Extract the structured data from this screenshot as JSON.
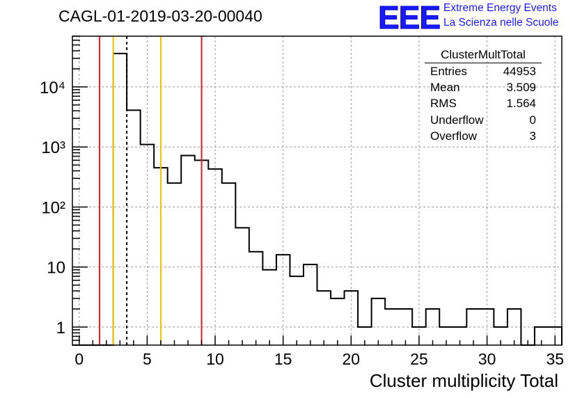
{
  "chart_data": {
    "type": "bar",
    "title": "CAGL-01-2019-03-20-00040",
    "xlabel": "Cluster multiplicity Total",
    "ylabel": "",
    "xlim": [
      -0.5,
      35.5
    ],
    "ylim": [
      0.5,
      70000
    ],
    "yscale": "log",
    "grid": true,
    "bin_edges_start": 0,
    "bin_width": 1,
    "values": [
      0,
      0,
      0,
      36000,
      4100,
      1100,
      450,
      250,
      720,
      600,
      430,
      250,
      45,
      18,
      9,
      16,
      7,
      11,
      4,
      3,
      4,
      1,
      3,
      2,
      2,
      1,
      2,
      1,
      1,
      2,
      2,
      1,
      2,
      0,
      1,
      1
    ],
    "x_ticks": [
      "0",
      "5",
      "10",
      "15",
      "20",
      "25",
      "30",
      "35"
    ],
    "y_ticks": [
      "1",
      "10",
      "10²",
      "10³",
      "10⁴"
    ],
    "vertical_lines": [
      {
        "x": 1.5,
        "color": "#e8191c",
        "style": "solid"
      },
      {
        "x": 2.5,
        "color": "#f2c200",
        "style": "solid"
      },
      {
        "x": 3.5,
        "color": "#000000",
        "style": "dashed"
      },
      {
        "x": 6.0,
        "color": "#f2c200",
        "style": "solid"
      },
      {
        "x": 9.0,
        "color": "#e8191c",
        "style": "solid"
      }
    ]
  },
  "logo": {
    "mark": "EEE",
    "line1": "Extreme Energy Events",
    "line2": "La Scienza nelle Scuole",
    "color": "#1a1aff"
  },
  "stats": {
    "title": "ClusterMultTotal",
    "rows": [
      {
        "label": "Entries",
        "value": "44953"
      },
      {
        "label": "Mean",
        "value": "3.509"
      },
      {
        "label": "RMS",
        "value": "1.564"
      },
      {
        "label": "Underflow",
        "value": "0"
      },
      {
        "label": "Overflow",
        "value": "3"
      }
    ]
  }
}
